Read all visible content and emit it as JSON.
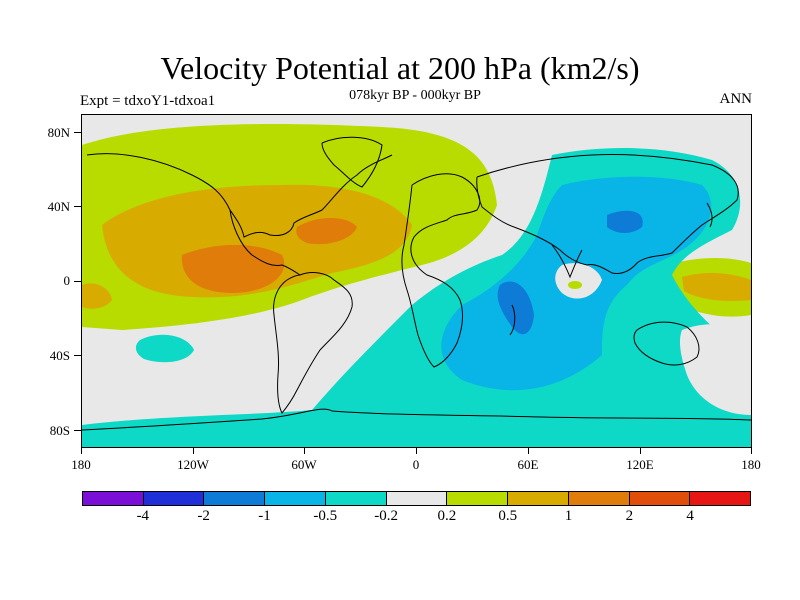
{
  "title": "Velocity Potential at 200 hPa (km2/s)",
  "subtitle": "078kyr BP - 000kyr BP",
  "experiment": "Expt = tdxoY1-tdxoa1",
  "season": "ANN",
  "map": {
    "projection": "cylindrical equidistant",
    "background_color": "#e8e8e8",
    "y_axis_labels": [
      "80N",
      "40N",
      "0",
      "40S",
      "80S"
    ],
    "x_axis_labels": [
      "180",
      "120W",
      "60W",
      "0",
      "60E",
      "120E",
      "180"
    ],
    "lat_ticks": [
      80,
      40,
      0,
      -40,
      -80
    ],
    "lon_ticks": [
      -180,
      -120,
      -60,
      0,
      60,
      120,
      180
    ]
  },
  "colorbar": {
    "colors": [
      "#7a10d8",
      "#2030d8",
      "#0e7bd6",
      "#08b5e6",
      "#0ed9c6",
      "#e8e8e8",
      "#b8dc00",
      "#d7ab00",
      "#e07c0a",
      "#e04e0a",
      "#e61614"
    ],
    "labels": [
      "-4",
      "-2",
      "-1",
      "-0.5",
      "-0.2",
      "0.2",
      "0.5",
      "1",
      "2",
      "4"
    ]
  }
}
